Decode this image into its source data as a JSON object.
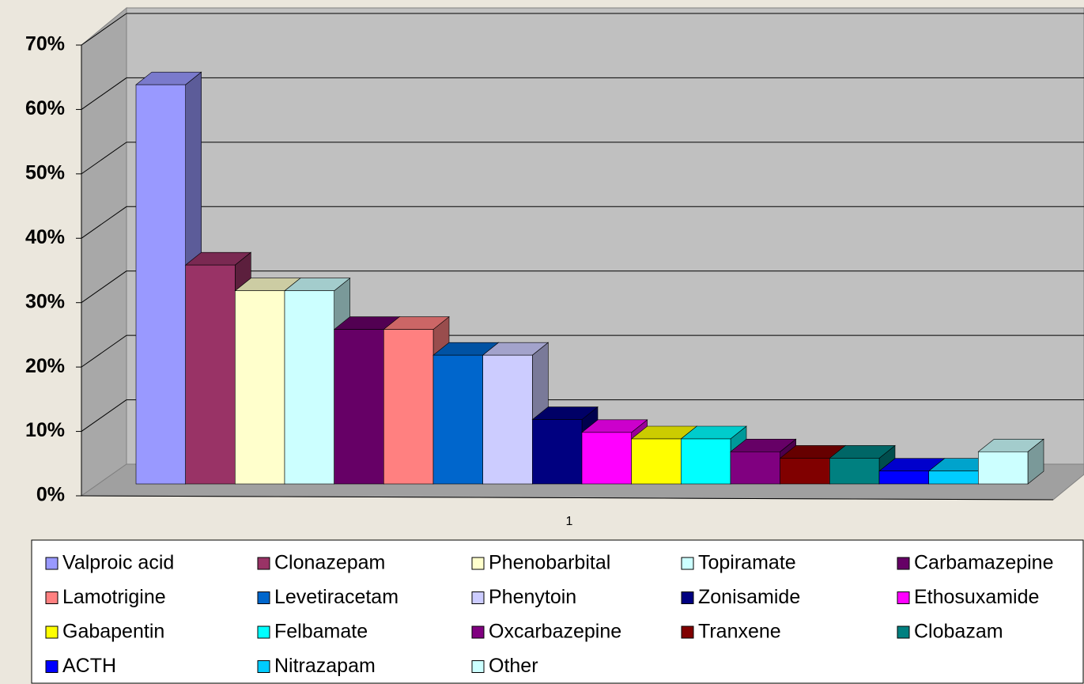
{
  "chart_data": {
    "type": "bar",
    "categories": [
      "1"
    ],
    "series": [
      {
        "name": "Valproic acid",
        "color": "#9999ff",
        "values": [
          62
        ]
      },
      {
        "name": "Clonazepam",
        "color": "#993366",
        "values": [
          34
        ]
      },
      {
        "name": "Phenobarbital",
        "color": "#ffffcc",
        "values": [
          30
        ]
      },
      {
        "name": "Topiramate",
        "color": "#ccffff",
        "values": [
          30
        ]
      },
      {
        "name": "Carbamazepine",
        "color": "#660066",
        "values": [
          24
        ]
      },
      {
        "name": "Lamotrigine",
        "color": "#ff8080",
        "values": [
          24
        ]
      },
      {
        "name": "Levetiracetam",
        "color": "#0066cc",
        "values": [
          20
        ]
      },
      {
        "name": "Phenytoin",
        "color": "#ccccff",
        "values": [
          20
        ]
      },
      {
        "name": "Zonisamide",
        "color": "#000080",
        "values": [
          10
        ]
      },
      {
        "name": "Ethosuxamide",
        "color": "#ff00ff",
        "values": [
          8
        ]
      },
      {
        "name": "Gabapentin",
        "color": "#ffff00",
        "values": [
          7
        ]
      },
      {
        "name": "Felbamate",
        "color": "#00ffff",
        "values": [
          7
        ]
      },
      {
        "name": "Oxcarbazepine",
        "color": "#800080",
        "values": [
          5
        ]
      },
      {
        "name": "Tranxene",
        "color": "#800000",
        "values": [
          4
        ]
      },
      {
        "name": "Clobazam",
        "color": "#008080",
        "values": [
          4
        ]
      },
      {
        "name": "ACTH",
        "color": "#0000ff",
        "values": [
          2
        ]
      },
      {
        "name": "Nitrazapam",
        "color": "#00ccff",
        "values": [
          2
        ]
      },
      {
        "name": "Other",
        "color": "#ccffff",
        "values": [
          5
        ]
      }
    ],
    "ylim": [
      0,
      70
    ],
    "yticks": [
      {
        "value": 0,
        "label": "0%"
      },
      {
        "value": 10,
        "label": "10%"
      },
      {
        "value": 20,
        "label": "20%"
      },
      {
        "value": 30,
        "label": "30%"
      },
      {
        "value": 40,
        "label": "40%"
      },
      {
        "value": 50,
        "label": "50%"
      },
      {
        "value": 60,
        "label": "60%"
      },
      {
        "value": 70,
        "label": "70%"
      }
    ],
    "grid": true,
    "legend": "bottom"
  }
}
